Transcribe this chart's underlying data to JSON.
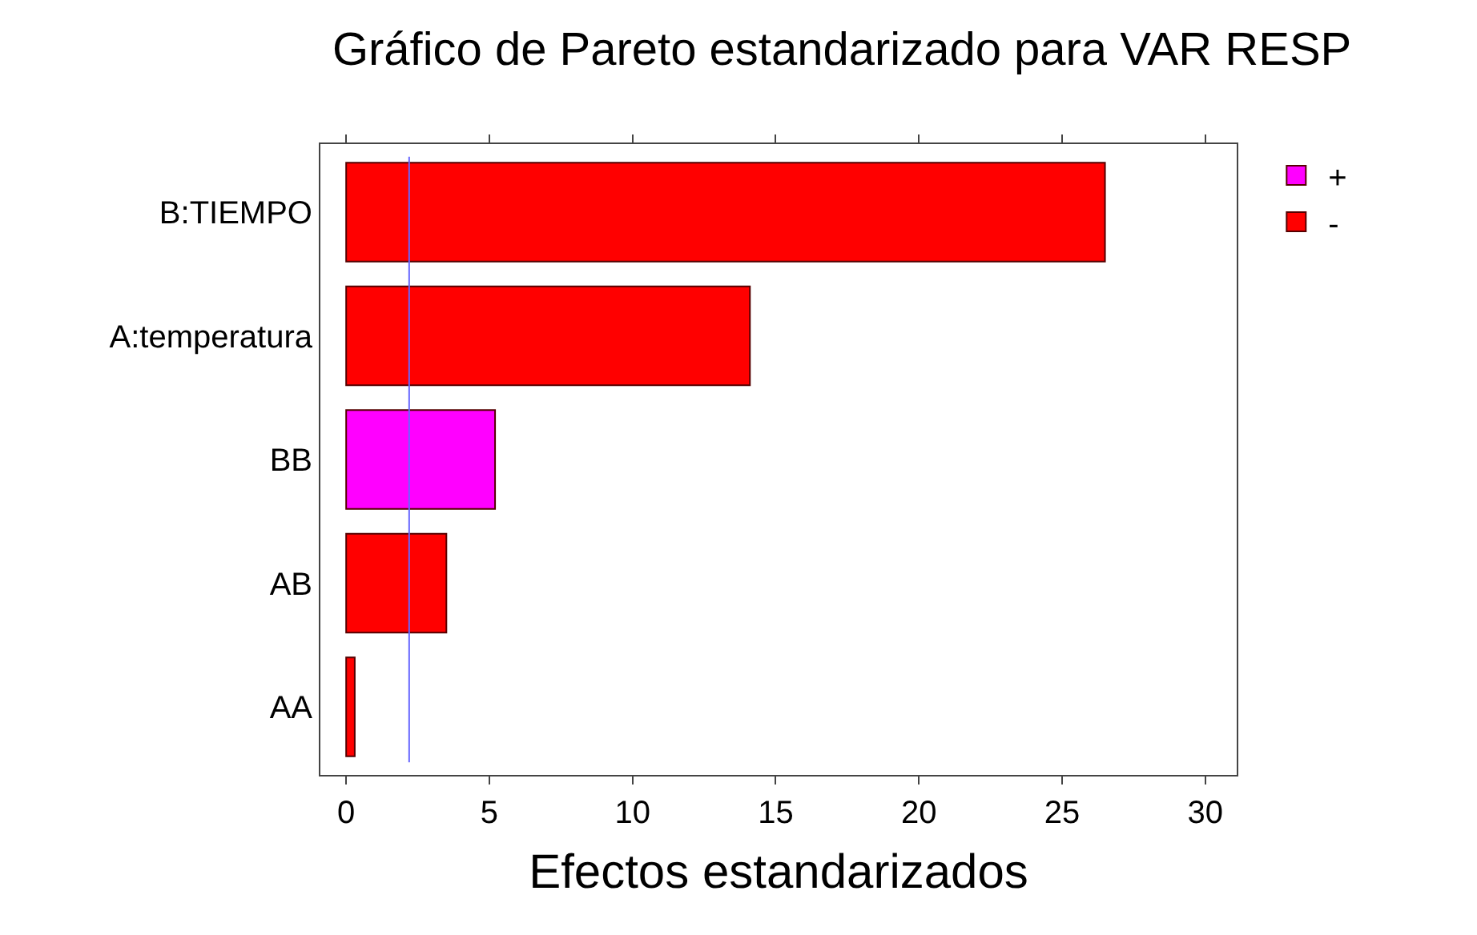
{
  "chart_data": {
    "type": "bar",
    "orientation": "horizontal",
    "title": "Gráfico de Pareto estandarizado para VAR RESP",
    "xlabel": "Efectos estandarizados",
    "categories": [
      "B:TIEMPO",
      "A:temperatura",
      "BB",
      "AB",
      "AA"
    ],
    "series": [
      {
        "name": "+",
        "color": "#ff00ff",
        "values": [
          null,
          null,
          5.2,
          null,
          null
        ]
      },
      {
        "name": "-",
        "color": "#ff0000",
        "values": [
          26.5,
          14.1,
          null,
          3.5,
          0.3
        ]
      }
    ],
    "xlim": [
      -0.9,
      31.1
    ],
    "xticks": [
      0,
      5,
      10,
      15,
      20,
      25,
      30
    ],
    "ref_lines": [
      {
        "axis": "x",
        "value": 2.2,
        "color": "#6666ff"
      }
    ],
    "legend": "right"
  }
}
